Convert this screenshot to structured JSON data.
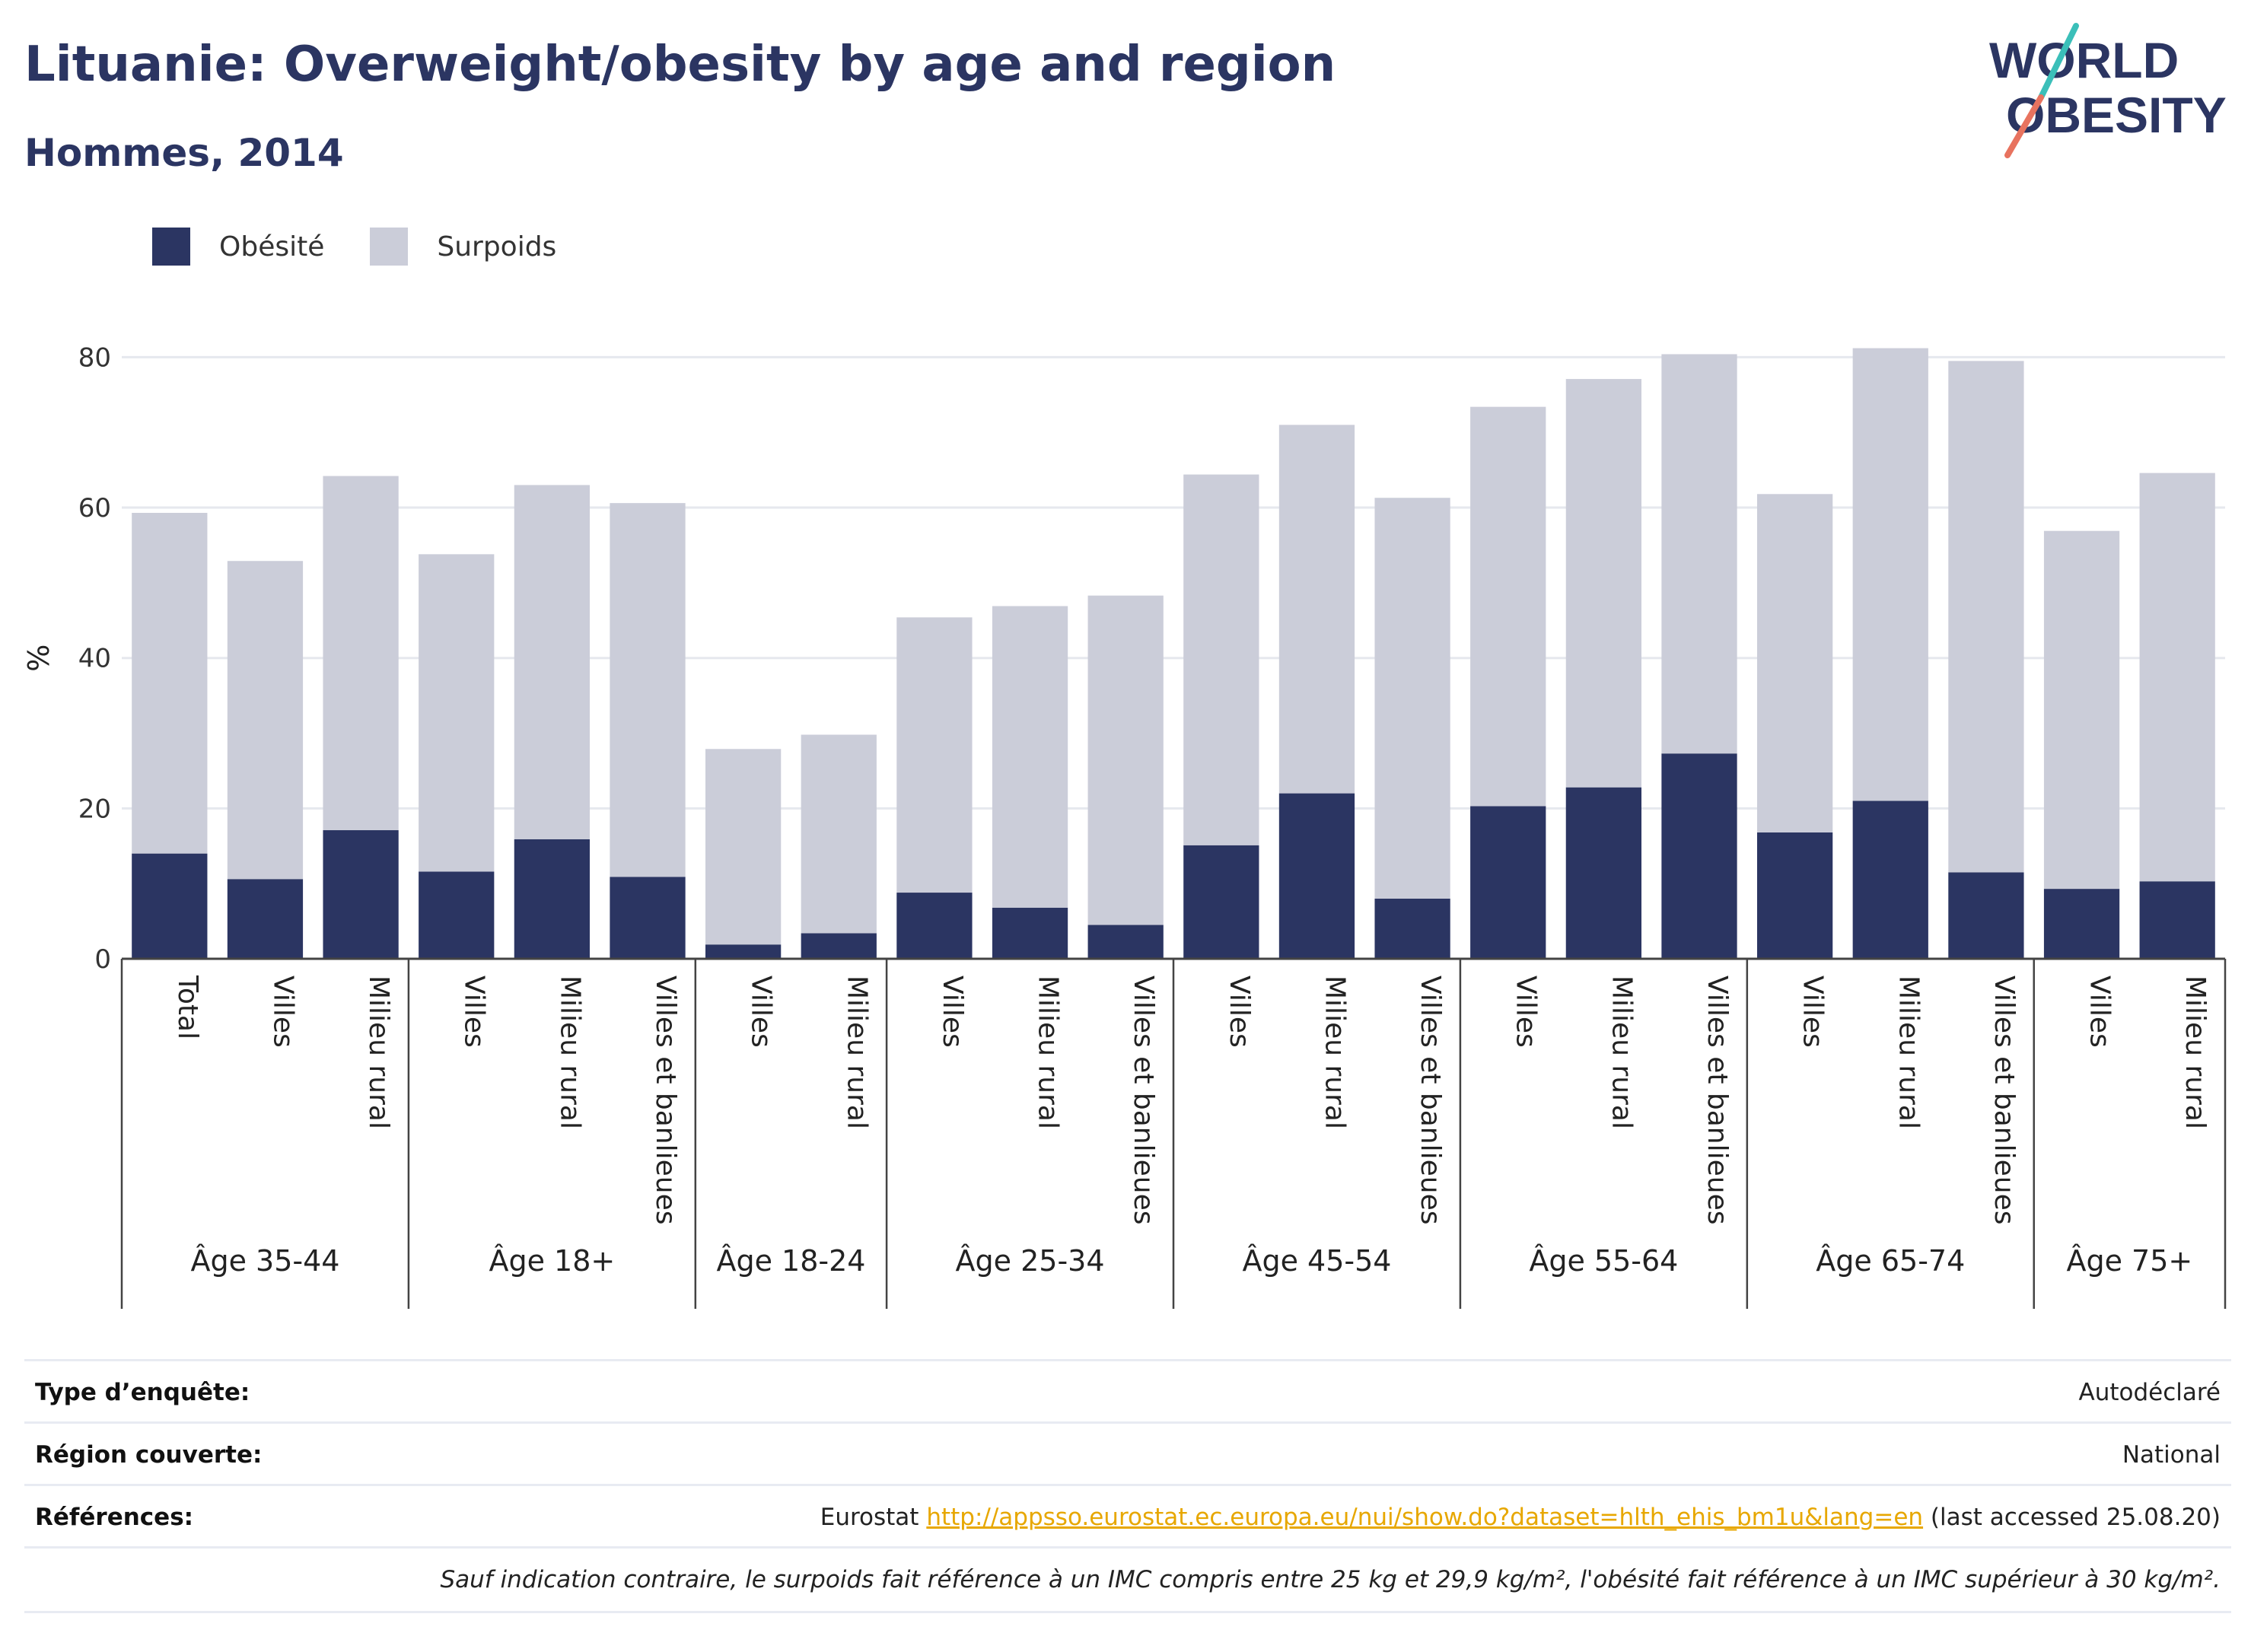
{
  "header": {
    "title": "Lituanie: Overweight/obesity by age and region",
    "subtitle": "Hommes, 2014",
    "logo_line1": "WORLD",
    "logo_line2": "OBESITY"
  },
  "legend": {
    "items": [
      {
        "label": "Obésité",
        "color": "#2b3562"
      },
      {
        "label": "Surpoids",
        "color": "#cbcdd9"
      }
    ]
  },
  "chart_data": {
    "type": "bar",
    "stacked": true,
    "ylabel": "%",
    "ylim": [
      0,
      85
    ],
    "yticks": [
      0,
      20,
      40,
      60,
      80
    ],
    "grid": true,
    "legend_position": "top-left",
    "groups": [
      {
        "label": "Âge 35-44",
        "categories": [
          "Total",
          "Villes",
          "Milieu rural"
        ]
      },
      {
        "label": "Âge 18+",
        "categories": [
          "Villes",
          "Milieu rural",
          "Villes et banlieues"
        ]
      },
      {
        "label": "Âge 18-24",
        "categories": [
          "Villes",
          "Milieu rural"
        ]
      },
      {
        "label": "Âge 25-34",
        "categories": [
          "Villes",
          "Milieu rural",
          "Villes et banlieues"
        ]
      },
      {
        "label": "Âge 45-54",
        "categories": [
          "Villes",
          "Milieu rural",
          "Villes et banlieues"
        ]
      },
      {
        "label": "Âge 55-64",
        "categories": [
          "Villes",
          "Milieu rural",
          "Villes et banlieues"
        ]
      },
      {
        "label": "Âge 65-74",
        "categories": [
          "Villes",
          "Milieu rural",
          "Villes et banlieues"
        ]
      },
      {
        "label": "Âge 75+",
        "categories": [
          "Villes",
          "Milieu rural"
        ]
      }
    ],
    "series": [
      {
        "name": "Obésité",
        "color": "#2b3562",
        "values": [
          14.0,
          10.6,
          17.1,
          11.6,
          15.9,
          10.9,
          1.9,
          3.4,
          8.8,
          6.8,
          4.5,
          15.1,
          22.0,
          8.0,
          20.3,
          22.8,
          27.3,
          16.8,
          21.0,
          11.5,
          9.3,
          10.3
        ]
      },
      {
        "name": "Surpoids",
        "color": "#cbcdd9",
        "values": [
          45.3,
          42.3,
          47.1,
          42.2,
          47.1,
          49.7,
          26.0,
          26.4,
          36.6,
          40.1,
          43.8,
          49.3,
          49.0,
          53.3,
          53.1,
          54.3,
          53.1,
          45.0,
          60.2,
          68.0,
          47.6,
          54.3
        ]
      }
    ]
  },
  "meta": {
    "survey_type_label": "Type d’enquête:",
    "survey_type_value": "Autodéclaré",
    "region_label": "Région couverte:",
    "region_value": "National",
    "references_label": "Références:",
    "references_prefix": "Eurostat",
    "references_link": "http://appsso.eurostat.ec.europa.eu/nui/show.do?dataset=hlth_ehis_bm1u&lang=en",
    "references_suffix": "(last accessed 25.08.20)",
    "note": "Sauf indication contraire, le surpoids fait référence à un IMC compris entre 25 kg et 29,9 kg/m², l'obésité fait référence à un IMC supérieur à 30 kg/m²."
  }
}
